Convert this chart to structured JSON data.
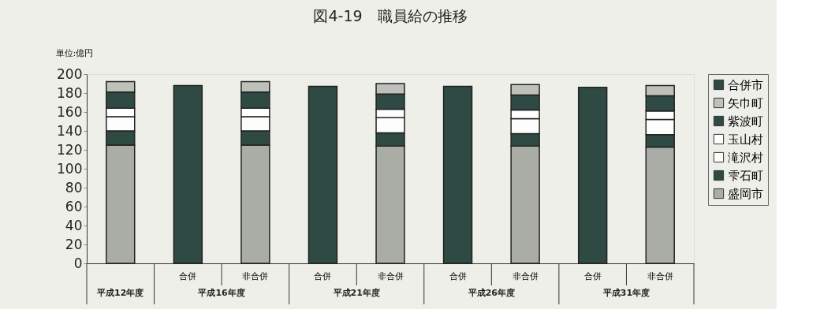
{
  "chart_data": {
    "type": "bar",
    "stacked": true,
    "title": "図4-19　職員給の推移",
    "ylabel": "単位:億円",
    "categories": [
      null,
      "合併",
      "非合併",
      "合併",
      "非合併",
      "合併",
      "非合併",
      "合併",
      "非合併"
    ],
    "annotations": [
      "平成12年度",
      "平成16年度",
      "平成21年度",
      "平成26年度",
      "平成31年度"
    ],
    "series": [
      {
        "name": "盛岡市",
        "color": "#a9ada5",
        "values": [
          125,
          null,
          125,
          null,
          124,
          null,
          124,
          null,
          123
        ]
      },
      {
        "name": "雫石町",
        "color": "#2f4a43",
        "values": [
          15,
          null,
          15,
          null,
          14,
          null,
          13,
          null,
          13
        ]
      },
      {
        "name": "滝沢村",
        "color": "#fdfdfb",
        "values": [
          15,
          null,
          15,
          null,
          16,
          null,
          16,
          null,
          16
        ]
      },
      {
        "name": "玉山村",
        "color": "#ffffff",
        "values": [
          9,
          null,
          9,
          null,
          9,
          null,
          9,
          null,
          9
        ]
      },
      {
        "name": "紫波町",
        "color": "#2f4a43",
        "values": [
          17,
          null,
          17,
          null,
          16,
          null,
          16,
          null,
          16
        ]
      },
      {
        "name": "矢巾町",
        "color": "#bdc1ba",
        "values": [
          11,
          null,
          11,
          null,
          11,
          null,
          11,
          null,
          11
        ]
      },
      {
        "name": "合併市",
        "color": "#2f4a43",
        "values": [
          null,
          188,
          null,
          187,
          null,
          187,
          null,
          186,
          null
        ]
      }
    ],
    "ylim": [
      0,
      200
    ],
    "yticks": [
      0,
      20,
      40,
      60,
      80,
      100,
      120,
      140,
      160,
      180,
      200
    ],
    "grid": false,
    "legend": "right"
  }
}
